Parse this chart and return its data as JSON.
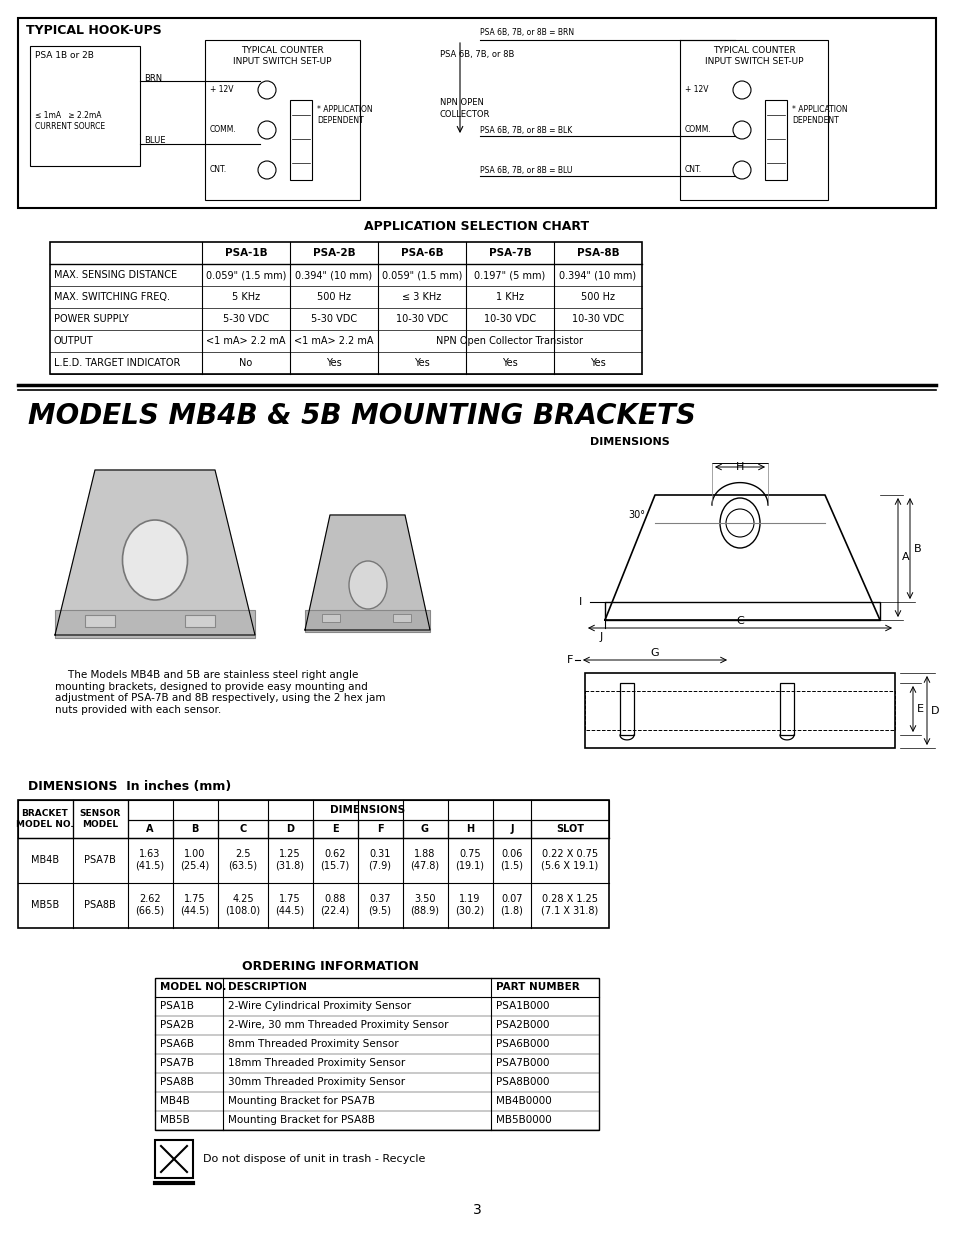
{
  "page_bg": "#ffffff",
  "title_main": "MODELS MB4B & 5B MOUNTING BRACKETS",
  "hookups_title": "TYPICAL HOOK-UPS",
  "app_chart_title": "APPLICATION SELECTION CHART",
  "app_chart_headers": [
    "",
    "PSA-1B",
    "PSA-2B",
    "PSA-6B",
    "PSA-7B",
    "PSA-8B"
  ],
  "app_chart_rows": [
    [
      "MAX. SENSING DISTANCE",
      "0.059\" (1.5 mm)",
      "0.394\" (10 mm)",
      "0.059\" (1.5 mm)",
      "0.197\" (5 mm)",
      "0.394\" (10 mm)"
    ],
    [
      "MAX. SWITCHING FREQ.",
      "5 KHz",
      "500 Hz",
      "≤ 3 KHz",
      "1 KHz",
      "500 Hz"
    ],
    [
      "POWER SUPPLY",
      "5-30 VDC",
      "5-30 VDC",
      "10-30 VDC",
      "10-30 VDC",
      "10-30 VDC"
    ],
    [
      "OUTPUT",
      "<1 mA> 2.2 mA",
      "<1 mA> 2.2 mA",
      "NPN Open Collector Transistor",
      "",
      ""
    ],
    [
      "L.E.D. TARGET INDICATOR",
      "No",
      "Yes",
      "Yes",
      "Yes",
      "Yes"
    ]
  ],
  "dim_table_headers": [
    "BRACKET\nMODEL NO.",
    "SENSOR\nMODEL",
    "A",
    "B",
    "C",
    "D",
    "E",
    "F",
    "G",
    "H",
    "J",
    "SLOT"
  ],
  "dim_table_rows": [
    [
      "MB4B",
      "PSA7B",
      "1.63\n(41.5)",
      "1.00\n(25.4)",
      "2.5\n(63.5)",
      "1.25\n(31.8)",
      "0.62\n(15.7)",
      "0.31\n(7.9)",
      "1.88\n(47.8)",
      "0.75\n(19.1)",
      "0.06\n(1.5)",
      "0.22 X 0.75\n(5.6 X 19.1)"
    ],
    [
      "MB5B",
      "PSA8B",
      "2.62\n(66.5)",
      "1.75\n(44.5)",
      "4.25\n(108.0)",
      "1.75\n(44.5)",
      "0.88\n(22.4)",
      "0.37\n(9.5)",
      "3.50\n(88.9)",
      "1.19\n(30.2)",
      "0.07\n(1.8)",
      "0.28 X 1.25\n(7.1 X 31.8)"
    ]
  ],
  "ordering_title": "ORDERING INFORMATION",
  "ordering_headers": [
    "MODEL NO.",
    "DESCRIPTION",
    "PART NUMBER"
  ],
  "ordering_rows": [
    [
      "PSA1B",
      "2-Wire Cylindrical Proximity Sensor",
      "PSA1B000"
    ],
    [
      "PSA2B",
      "2-Wire, 30 mm Threaded Proximity Sensor",
      "PSA2B000"
    ],
    [
      "PSA6B",
      "8mm Threaded Proximity Sensor",
      "PSA6B000"
    ],
    [
      "PSA7B",
      "18mm Threaded Proximity Sensor",
      "PSA7B000"
    ],
    [
      "PSA8B",
      "30mm Threaded Proximity Sensor",
      "PSA8B000"
    ],
    [
      "MB4B",
      "Mounting Bracket for PSA7B",
      "MB4B0000"
    ],
    [
      "MB5B",
      "Mounting Bracket for PSA8B",
      "MB5B0000"
    ]
  ],
  "recycle_text": "Do not dispose of unit in trash - Recycle",
  "page_number": "3",
  "description_text": "    The Models MB4B and 5B are stainless steel right angle\nmounting brackets, designed to provide easy mounting and\nadjustment of PSA-7B and 8B respectively, using the 2 hex jam\nnuts provided with each sensor."
}
